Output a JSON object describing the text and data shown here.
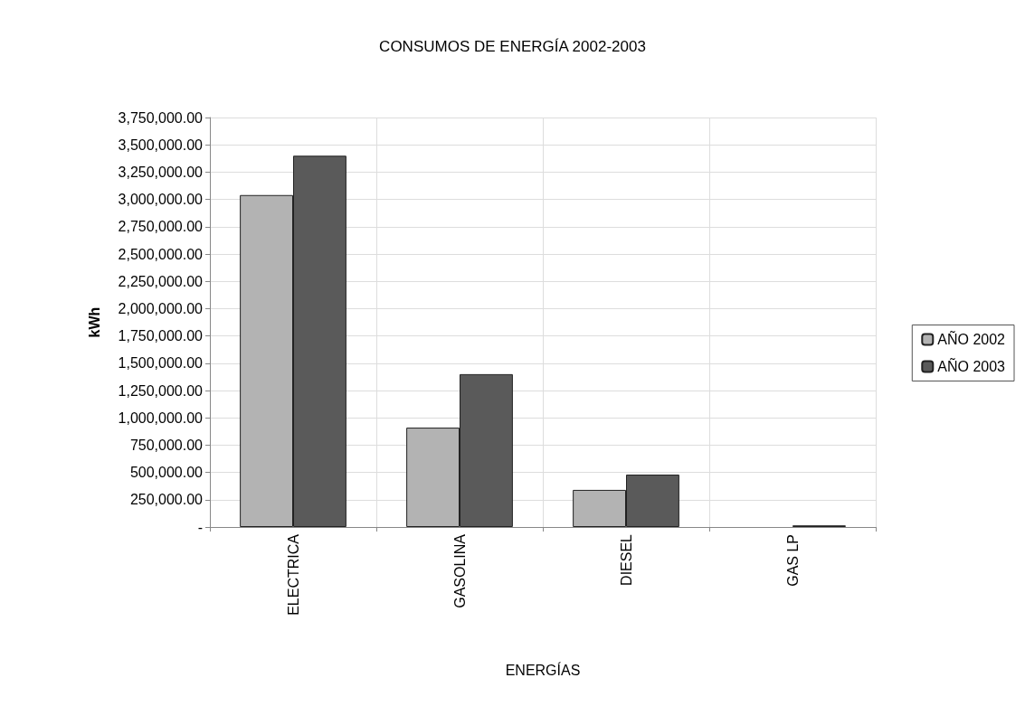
{
  "chart_data": {
    "type": "bar",
    "title": "CONSUMOS DE ENERGÍA 2002-2003",
    "xlabel": "ENERGÍAS",
    "ylabel": "kWh",
    "categories": [
      "ELECTRICA",
      "GASOLINA",
      "DIESEL",
      "GAS LP"
    ],
    "series": [
      {
        "name": "AÑO 2002",
        "color": "#b3b3b3",
        "values": [
          3040000,
          910000,
          340000,
          null
        ]
      },
      {
        "name": "AÑO 2003",
        "color": "#5a5a5a",
        "values": [
          3400000,
          1400000,
          480000,
          15000
        ]
      }
    ],
    "ylim": [
      0,
      3750000
    ],
    "yticks": [
      {
        "value": 0,
        "label": "-"
      },
      {
        "value": 250000,
        "label": "250,000.00"
      },
      {
        "value": 500000,
        "label": "500,000.00"
      },
      {
        "value": 750000,
        "label": "750,000.00"
      },
      {
        "value": 1000000,
        "label": "1,000,000.00"
      },
      {
        "value": 1250000,
        "label": "1,250,000.00"
      },
      {
        "value": 1500000,
        "label": "1,500,000.00"
      },
      {
        "value": 1750000,
        "label": "1,750,000.00"
      },
      {
        "value": 2000000,
        "label": "2,000,000.00"
      },
      {
        "value": 2250000,
        "label": "2,250,000.00"
      },
      {
        "value": 2500000,
        "label": "2,500,000.00"
      },
      {
        "value": 2750000,
        "label": "2,750,000.00"
      },
      {
        "value": 3000000,
        "label": "3,000,000.00"
      },
      {
        "value": 3250000,
        "label": "3,250,000.00"
      },
      {
        "value": 3500000,
        "label": "3,500,000.00"
      },
      {
        "value": 3750000,
        "label": "3,750,000.00"
      }
    ],
    "grid": true,
    "legend": "right"
  }
}
